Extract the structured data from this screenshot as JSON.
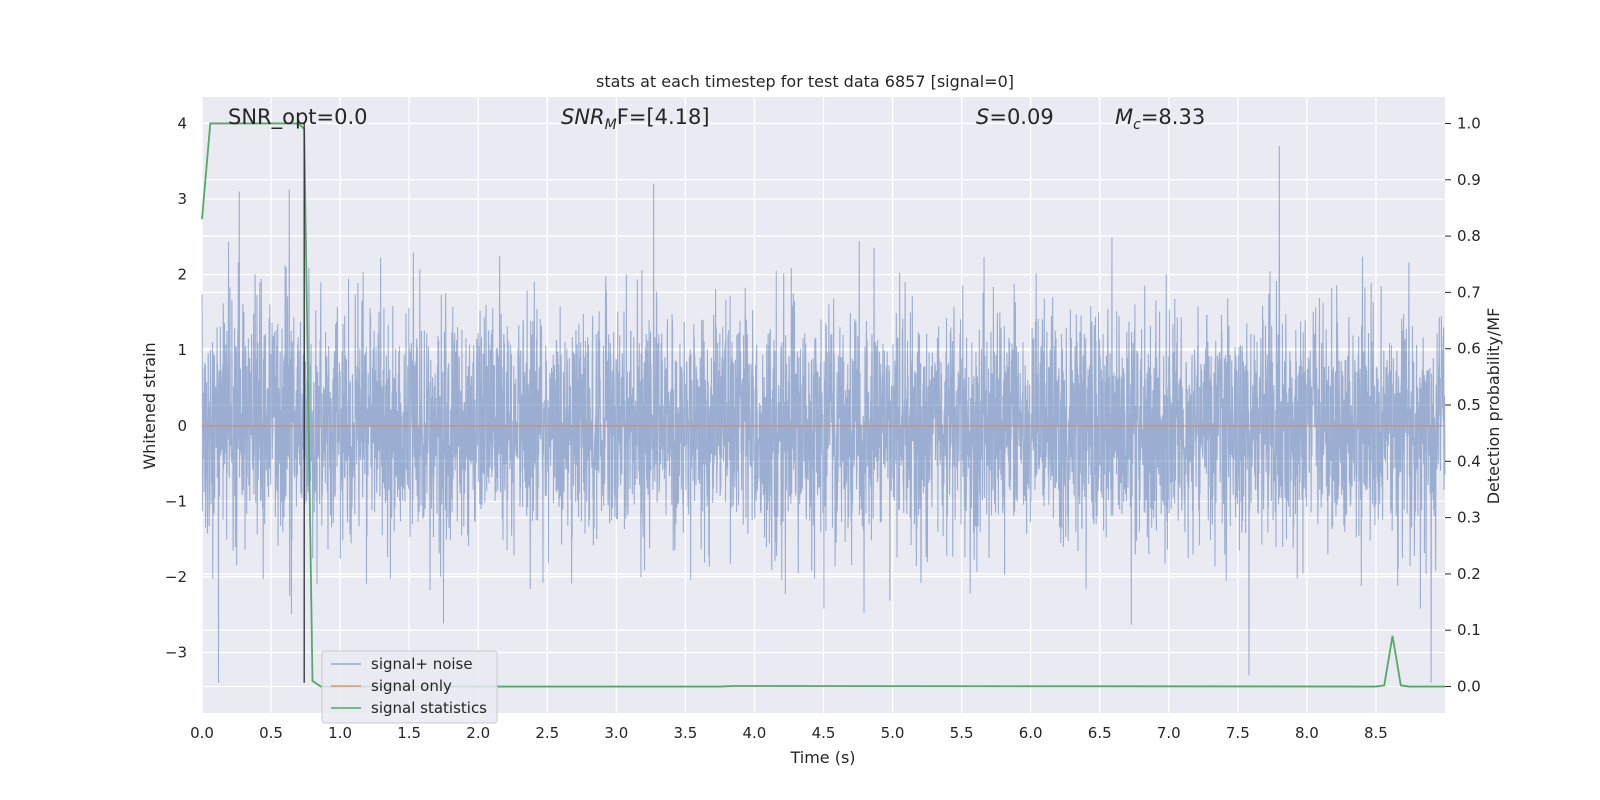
{
  "chart_data": {
    "type": "line",
    "title": "stats at each timestep for test data 6857 [signal=0]",
    "xlabel": "Time (s)",
    "ylabel": "Whitened strain",
    "y2label": "Detection probability/MF",
    "xlim": [
      0.0,
      9.0
    ],
    "ylim": [
      -3.8,
      4.35
    ],
    "y2lim": [
      -0.047,
      1.047
    ],
    "x_ticks": [
      0.0,
      0.5,
      1.0,
      1.5,
      2.0,
      2.5,
      3.0,
      3.5,
      4.0,
      4.5,
      5.0,
      5.5,
      6.0,
      6.5,
      7.0,
      7.5,
      8.0,
      8.5
    ],
    "x_tick_labels": [
      "0.0",
      "0.5",
      "1.0",
      "1.5",
      "2.0",
      "2.5",
      "3.0",
      "3.5",
      "4.0",
      "4.5",
      "5.0",
      "5.5",
      "6.0",
      "6.5",
      "7.0",
      "7.5",
      "8.0",
      "8.5"
    ],
    "y_ticks": [
      -3,
      -2,
      -1,
      0,
      1,
      2,
      3,
      4
    ],
    "y_tick_labels": [
      "−3",
      "−2",
      "−1",
      "0",
      "1",
      "2",
      "3",
      "4"
    ],
    "y2_ticks": [
      0.0,
      0.1,
      0.2,
      0.3,
      0.4,
      0.5,
      0.6,
      0.7,
      0.8,
      0.9,
      1.0
    ],
    "y2_tick_labels": [
      "0.0",
      "0.1",
      "0.2",
      "0.3",
      "0.4",
      "0.5",
      "0.6",
      "0.7",
      "0.8",
      "0.9",
      "1.0"
    ],
    "grid": true,
    "legend_position": "bottom-left",
    "annotations": {
      "snr_opt": "SNR_opt=0.0",
      "snr_mf_base": "SNR",
      "snr_mf_sub": "M",
      "snr_mf_tail": "F=[4.18]",
      "s_var": "S",
      "s_val": "=0.09",
      "mc_var": "M",
      "mc_sub": "c",
      "mc_val": "=8.33"
    },
    "series": [
      {
        "name": "signal+ noise",
        "color": "#4c72b0",
        "style": "dense noise around 0",
        "noise_std": 0.75,
        "noise_clip": [
          -3.4,
          4.0
        ],
        "notable_peaks": [
          {
            "x": 0.12,
            "y": 4.0
          },
          {
            "x": 0.27,
            "y": 3.1
          },
          {
            "x": 3.27,
            "y": 3.2
          },
          {
            "x": 7.8,
            "y": 3.7
          },
          {
            "x": 0.12,
            "y": -3.4
          },
          {
            "x": 7.58,
            "y": -3.3
          },
          {
            "x": 8.9,
            "y": -3.4
          }
        ]
      },
      {
        "name": "signal only",
        "color": "#dd8452",
        "x": [
          0.0,
          9.0
        ],
        "y": [
          0.0,
          0.0
        ]
      },
      {
        "name": "signal statistics",
        "color": "#55a868",
        "axis": "right",
        "x": [
          0.0,
          0.06,
          0.1,
          0.3,
          0.7,
          0.74,
          0.8,
          0.86,
          3.75,
          3.85,
          8.5,
          8.56,
          8.62,
          8.68,
          8.74,
          9.0
        ],
        "y": [
          0.83,
          1.0,
          1.0,
          1.0,
          1.0,
          0.99,
          0.01,
          0.0,
          0.0,
          0.001,
          0.0,
          0.002,
          0.09,
          0.002,
          0.0,
          0.0
        ]
      }
    ]
  }
}
